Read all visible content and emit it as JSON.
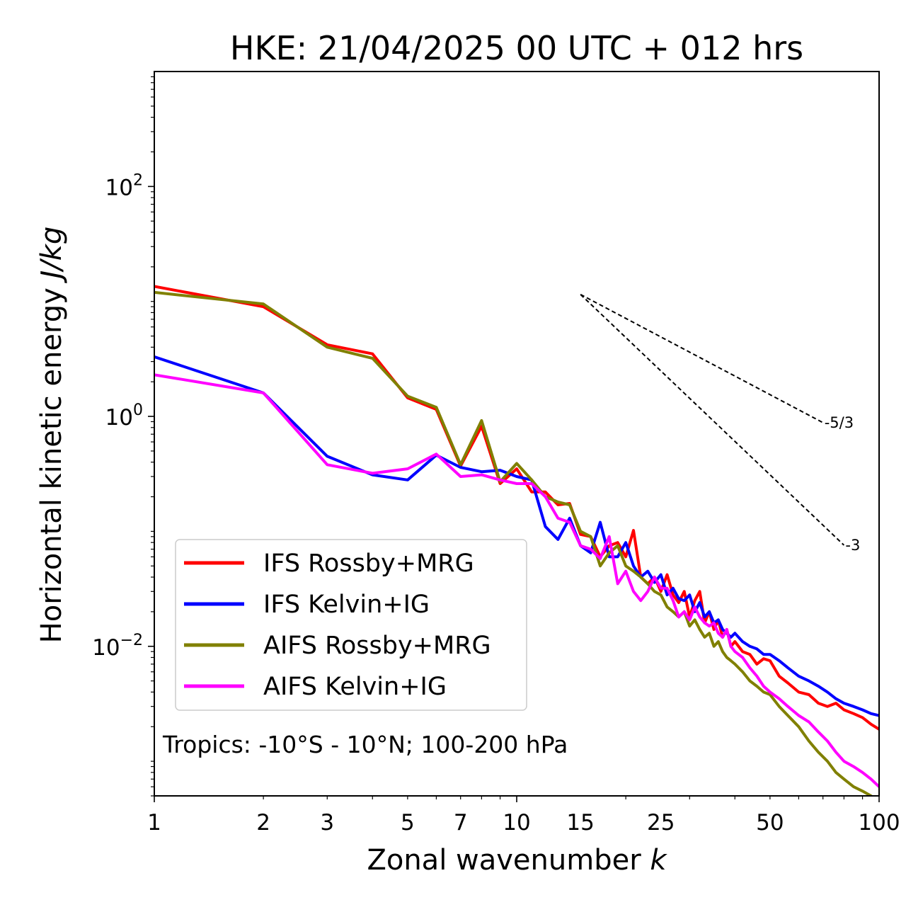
{
  "chart_data": {
    "type": "line",
    "title": "HKE: 21/04/2025 00 UTC + 012 hrs",
    "xlabel": "Zonal wavenumber",
    "xlabel_var": "k",
    "ylabel": "Horizontal kinetic energy",
    "ylabel_units": "J/kg",
    "x_scale": "log",
    "y_scale": "log",
    "xlim": [
      1,
      100
    ],
    "ylim": [
      0.0005,
      1000
    ],
    "x_ticks": [
      1,
      2,
      3,
      5,
      7,
      10,
      15,
      25,
      50,
      100
    ],
    "x_tick_labels": [
      "1",
      "2",
      "3",
      "5",
      "7",
      "10",
      "15",
      "25",
      "50",
      "100"
    ],
    "y_ticks": [
      {
        "value": 0.01,
        "base": "10",
        "exp": "−2"
      },
      {
        "value": 1,
        "base": "10",
        "exp": "0"
      },
      {
        "value": 100,
        "base": "10",
        "exp": "2"
      }
    ],
    "grid": false,
    "legend_position": "lower-left",
    "annotation": "Tropics: -10°S - 10°N; 100-200 hPa",
    "reference_slopes": [
      {
        "label": "-5/3",
        "slope": -1.6667,
        "x_start": 15,
        "y_start": 11.5,
        "x_end": 70
      },
      {
        "label": "-3",
        "slope": -3,
        "x_start": 15,
        "y_start": 11.5,
        "x_end": 80
      }
    ],
    "series": [
      {
        "name": "IFS Rossby+MRG",
        "color": "#ff0000",
        "x": [
          1,
          2,
          3,
          4,
          5,
          6,
          7,
          8,
          9,
          10,
          11,
          12,
          13,
          14,
          15,
          16,
          17,
          18,
          19,
          20,
          21,
          22,
          23,
          24,
          25,
          26,
          27,
          28,
          29,
          30,
          31,
          32,
          33,
          34,
          35,
          36,
          37,
          38,
          39,
          40,
          42,
          44,
          46,
          48,
          50,
          53,
          56,
          60,
          64,
          68,
          72,
          76,
          80,
          85,
          90,
          95,
          100
        ],
        "y": [
          13.5,
          9.0,
          4.2,
          3.5,
          1.45,
          1.15,
          0.37,
          0.82,
          0.26,
          0.35,
          0.22,
          0.22,
          0.17,
          0.175,
          0.094,
          0.09,
          0.06,
          0.075,
          0.08,
          0.06,
          0.102,
          0.04,
          0.035,
          0.04,
          0.03,
          0.042,
          0.028,
          0.024,
          0.03,
          0.018,
          0.025,
          0.03,
          0.016,
          0.02,
          0.014,
          0.017,
          0.012,
          0.014,
          0.01,
          0.011,
          0.009,
          0.0085,
          0.007,
          0.0078,
          0.0075,
          0.0055,
          0.0048,
          0.004,
          0.0038,
          0.0032,
          0.003,
          0.0032,
          0.0028,
          0.0026,
          0.0024,
          0.0021,
          0.0019
        ]
      },
      {
        "name": "IFS Kelvin+IG",
        "color": "#0000ff",
        "x": [
          1,
          2,
          3,
          4,
          5,
          6,
          7,
          8,
          9,
          10,
          11,
          12,
          13,
          14,
          15,
          16,
          17,
          18,
          19,
          20,
          21,
          22,
          23,
          24,
          25,
          26,
          27,
          28,
          29,
          30,
          31,
          32,
          33,
          34,
          35,
          36,
          37,
          38,
          39,
          40,
          42,
          44,
          46,
          48,
          50,
          53,
          56,
          60,
          64,
          68,
          72,
          76,
          80,
          85,
          90,
          95,
          100
        ],
        "y": [
          3.3,
          1.6,
          0.45,
          0.31,
          0.28,
          0.46,
          0.36,
          0.33,
          0.34,
          0.3,
          0.28,
          0.11,
          0.085,
          0.13,
          0.075,
          0.065,
          0.12,
          0.06,
          0.06,
          0.08,
          0.05,
          0.04,
          0.045,
          0.036,
          0.042,
          0.028,
          0.032,
          0.026,
          0.025,
          0.028,
          0.02,
          0.024,
          0.018,
          0.02,
          0.016,
          0.017,
          0.014,
          0.013,
          0.012,
          0.013,
          0.011,
          0.01,
          0.0095,
          0.0085,
          0.0085,
          0.0075,
          0.0065,
          0.0055,
          0.005,
          0.0045,
          0.004,
          0.0035,
          0.0032,
          0.003,
          0.0028,
          0.0026,
          0.0025
        ]
      },
      {
        "name": "AIFS Rossby+MRG",
        "color": "#808000",
        "x": [
          1,
          2,
          3,
          4,
          5,
          6,
          7,
          8,
          9,
          10,
          11,
          12,
          13,
          14,
          15,
          16,
          17,
          18,
          19,
          20,
          21,
          22,
          23,
          24,
          25,
          26,
          27,
          28,
          29,
          30,
          31,
          32,
          33,
          34,
          35,
          36,
          37,
          38,
          39,
          40,
          42,
          44,
          46,
          48,
          50,
          53,
          56,
          60,
          64,
          68,
          72,
          76,
          80,
          85,
          90,
          95,
          100
        ],
        "y": [
          12.0,
          9.5,
          4.0,
          3.2,
          1.5,
          1.2,
          0.38,
          0.92,
          0.27,
          0.39,
          0.28,
          0.2,
          0.18,
          0.17,
          0.1,
          0.09,
          0.05,
          0.065,
          0.075,
          0.05,
          0.045,
          0.04,
          0.035,
          0.03,
          0.028,
          0.022,
          0.02,
          0.018,
          0.02,
          0.015,
          0.017,
          0.014,
          0.012,
          0.013,
          0.01,
          0.011,
          0.009,
          0.008,
          0.0075,
          0.007,
          0.006,
          0.005,
          0.0045,
          0.004,
          0.0038,
          0.003,
          0.0025,
          0.002,
          0.0015,
          0.0012,
          0.001,
          0.0008,
          0.0007,
          0.0006,
          0.00055,
          0.0005,
          0.00045
        ]
      },
      {
        "name": "AIFS Kelvin+IG",
        "color": "#ff00ff",
        "x": [
          1,
          2,
          3,
          4,
          5,
          6,
          7,
          8,
          9,
          10,
          11,
          12,
          13,
          14,
          15,
          16,
          17,
          18,
          19,
          20,
          21,
          22,
          23,
          24,
          25,
          26,
          27,
          28,
          29,
          30,
          31,
          32,
          33,
          34,
          35,
          36,
          37,
          38,
          39,
          40,
          42,
          44,
          46,
          48,
          50,
          53,
          56,
          60,
          64,
          68,
          72,
          76,
          80,
          85,
          90,
          95,
          100
        ],
        "y": [
          2.3,
          1.6,
          0.38,
          0.32,
          0.35,
          0.47,
          0.3,
          0.31,
          0.28,
          0.26,
          0.26,
          0.2,
          0.13,
          0.12,
          0.075,
          0.07,
          0.058,
          0.09,
          0.035,
          0.045,
          0.03,
          0.025,
          0.03,
          0.04,
          0.032,
          0.032,
          0.025,
          0.018,
          0.02,
          0.017,
          0.022,
          0.018,
          0.016,
          0.015,
          0.016,
          0.013,
          0.012,
          0.014,
          0.01,
          0.009,
          0.008,
          0.0065,
          0.0055,
          0.0045,
          0.004,
          0.0035,
          0.003,
          0.0025,
          0.0022,
          0.0018,
          0.0015,
          0.0012,
          0.001,
          0.0009,
          0.0008,
          0.0007,
          0.0006
        ]
      }
    ]
  }
}
